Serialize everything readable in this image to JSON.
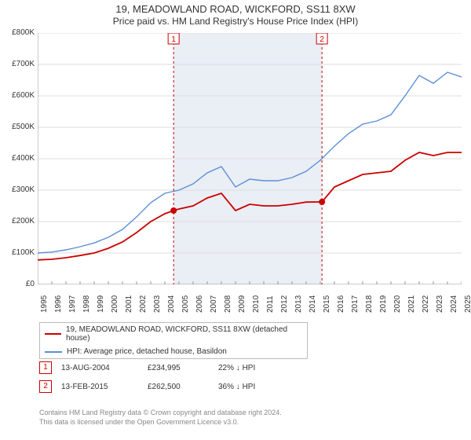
{
  "title": "19, MEADOWLAND ROAD, WICKFORD, SS11 8XW",
  "subtitle": "Price paid vs. HM Land Registry's House Price Index (HPI)",
  "title_fontsize": 13,
  "subtitle_fontsize": 12,
  "chart": {
    "type": "line",
    "background_color": "#ffffff",
    "grid_color": "#dddddd",
    "shaded_band_color": "#eaeef5",
    "shaded_band_xstart": 2004.62,
    "shaded_band_xend": 2015.12,
    "axis_color": "#999999",
    "label_fontsize": 10,
    "xlim": [
      1995,
      2025
    ],
    "xtick_step": 1,
    "xticks": [
      "1995",
      "1996",
      "1997",
      "1998",
      "1999",
      "2000",
      "2001",
      "2002",
      "2003",
      "2004",
      "2005",
      "2006",
      "2007",
      "2008",
      "2009",
      "2010",
      "2011",
      "2012",
      "2013",
      "2014",
      "2015",
      "2016",
      "2017",
      "2018",
      "2019",
      "2020",
      "2021",
      "2022",
      "2023",
      "2024",
      "2025"
    ],
    "ylim": [
      0,
      800000
    ],
    "ytick_step": 100000,
    "yticks": [
      "£0",
      "£100K",
      "£200K",
      "£300K",
      "£400K",
      "£500K",
      "£600K",
      "£700K",
      "£800K"
    ],
    "series": [
      {
        "name": "19, MEADOWLAND ROAD, WICKFORD, SS11 8XW (detached house)",
        "color": "#cc0000",
        "line_width": 1.8,
        "x": [
          1995,
          1996,
          1997,
          1998,
          1999,
          2000,
          2001,
          2002,
          2003,
          2004,
          2004.62,
          2005,
          2006,
          2007,
          2008,
          2009,
          2010,
          2011,
          2012,
          2013,
          2014,
          2015,
          2015.12,
          2016,
          2017,
          2018,
          2019,
          2020,
          2021,
          2022,
          2023,
          2024,
          2025
        ],
        "y": [
          78000,
          80000,
          85000,
          92000,
          100000,
          115000,
          135000,
          165000,
          200000,
          225000,
          234995,
          240000,
          250000,
          275000,
          290000,
          235000,
          255000,
          250000,
          250000,
          255000,
          262000,
          262500,
          262500,
          310000,
          330000,
          350000,
          355000,
          360000,
          395000,
          420000,
          410000,
          420000,
          420000
        ]
      },
      {
        "name": "HPI: Average price, detached house, Basildon",
        "color": "#5b8fd6",
        "line_width": 1.4,
        "x": [
          1995,
          1996,
          1997,
          1998,
          1999,
          2000,
          2001,
          2002,
          2003,
          2004,
          2005,
          2006,
          2007,
          2008,
          2009,
          2010,
          2011,
          2012,
          2013,
          2014,
          2015,
          2016,
          2017,
          2018,
          2019,
          2020,
          2021,
          2022,
          2023,
          2024,
          2025
        ],
        "y": [
          100000,
          103000,
          110000,
          120000,
          132000,
          150000,
          175000,
          215000,
          260000,
          290000,
          300000,
          320000,
          355000,
          375000,
          310000,
          335000,
          330000,
          330000,
          340000,
          360000,
          395000,
          440000,
          480000,
          510000,
          520000,
          540000,
          600000,
          665000,
          640000,
          675000,
          660000
        ]
      }
    ],
    "sale_markers": [
      {
        "label": "1",
        "x": 2004.62,
        "y": 234995
      },
      {
        "label": "2",
        "x": 2015.12,
        "y": 262500
      }
    ],
    "sale_marker_style": {
      "indicator_line_color": "#cc0000",
      "indicator_line_dash": "3,3",
      "box_border": "#cc0000",
      "box_text": "#cc0000",
      "dot_fill": "#cc0000",
      "dot_radius": 4
    }
  },
  "legend": {
    "rows": [
      {
        "color": "#cc0000",
        "label": "19, MEADOWLAND ROAD, WICKFORD, SS11 8XW (detached house)"
      },
      {
        "color": "#5b8fd6",
        "label": "HPI: Average price, detached house, Basildon"
      }
    ]
  },
  "sales_table": {
    "rows": [
      {
        "n": "1",
        "date": "13-AUG-2004",
        "price": "£234,995",
        "diff": "22% ↓ HPI"
      },
      {
        "n": "2",
        "date": "13-FEB-2015",
        "price": "£262,500",
        "diff": "36% ↓ HPI"
      }
    ]
  },
  "copyright": {
    "line1": "Contains HM Land Registry data © Crown copyright and database right 2024.",
    "line2": "This data is licensed under the Open Government Licence v3.0."
  }
}
